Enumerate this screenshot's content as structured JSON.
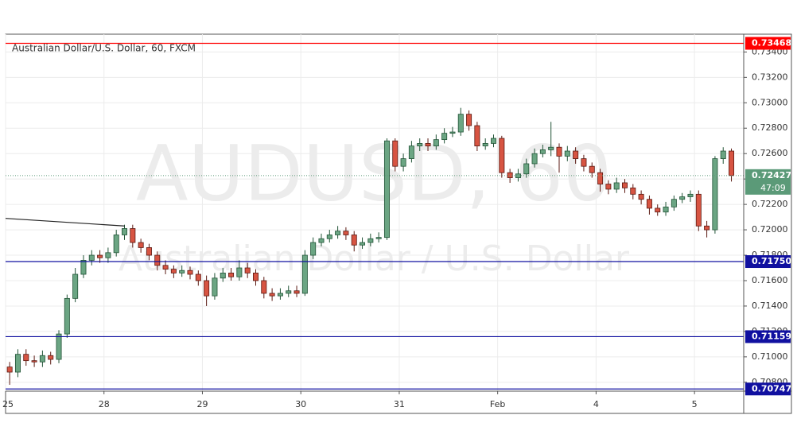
{
  "chart_data": {
    "type": "candlestick",
    "title": "Australian Dollar/U.S. Dollar, 60, FXCM",
    "watermark": "AUDUSD, 60",
    "watermark_subtitle": "Australian Dollar / U.S. Dollar",
    "up_color": "#6ba583",
    "down_color": "#d75442",
    "xlim": [
      0,
      90
    ],
    "xticks": [
      {
        "value": 0,
        "label": "25"
      },
      {
        "value": 12,
        "label": "28"
      },
      {
        "value": 24,
        "label": "29"
      },
      {
        "value": 36,
        "label": "30"
      },
      {
        "value": 48,
        "label": "31"
      },
      {
        "value": 60,
        "label": "Feb"
      },
      {
        "value": 72,
        "label": "4"
      },
      {
        "value": 84,
        "label": "5"
      }
    ],
    "ylim": [
      0.7073,
      0.7354
    ],
    "yticks": [
      {
        "value": 0.708,
        "label": "0.70800"
      },
      {
        "value": 0.71,
        "label": "0.71000"
      },
      {
        "value": 0.712,
        "label": "0.71200"
      },
      {
        "value": 0.714,
        "label": "0.71400"
      },
      {
        "value": 0.716,
        "label": "0.71600"
      },
      {
        "value": 0.718,
        "label": "0.71800"
      },
      {
        "value": 0.72,
        "label": "0.72000"
      },
      {
        "value": 0.722,
        "label": "0.72200"
      },
      {
        "value": 0.724,
        "label": "0.72400"
      },
      {
        "value": 0.726,
        "label": "0.72600"
      },
      {
        "value": 0.728,
        "label": "0.72800"
      },
      {
        "value": 0.73,
        "label": "0.73000"
      },
      {
        "value": 0.732,
        "label": "0.73200"
      },
      {
        "value": 0.734,
        "label": "0.73400"
      }
    ],
    "grid": true,
    "open": [
      0.7092,
      0.7088,
      0.7102,
      0.7097,
      0.7096,
      0.7101,
      0.7098,
      0.7118,
      0.7146,
      0.7165,
      0.7176,
      0.718,
      0.7178,
      0.7182,
      0.7196,
      0.7201,
      0.719,
      0.7186,
      0.718,
      0.7172,
      0.7169,
      0.7166,
      0.7168,
      0.7165,
      0.716,
      0.7148,
      0.7162,
      0.7166,
      0.7163,
      0.717,
      0.7166,
      0.716,
      0.715,
      0.7148,
      0.715,
      0.7152,
      0.715,
      0.718,
      0.719,
      0.7193,
      0.7196,
      0.7199,
      0.7196,
      0.7188,
      0.719,
      0.7193,
      0.7194,
      0.727,
      0.725,
      0.7256,
      0.7266,
      0.7268,
      0.7266,
      0.7271,
      0.7276,
      0.7277,
      0.7291,
      0.7282,
      0.7266,
      0.7268,
      0.7272,
      0.7245,
      0.7241,
      0.7244,
      0.7252,
      0.726,
      0.7263,
      0.7265,
      0.7258,
      0.7262,
      0.7256,
      0.725,
      0.7245,
      0.7236,
      0.7232,
      0.7237,
      0.7233,
      0.7228,
      0.7224,
      0.7217,
      0.7214,
      0.7218,
      0.7224,
      0.7226,
      0.7228,
      0.7203,
      0.72,
      0.7256,
      0.7262
    ],
    "high": [
      0.7096,
      0.7106,
      0.7106,
      0.7101,
      0.7105,
      0.7104,
      0.7121,
      0.7149,
      0.717,
      0.718,
      0.7184,
      0.7184,
      0.7186,
      0.72,
      0.7204,
      0.7204,
      0.7193,
      0.7189,
      0.7183,
      0.7176,
      0.7172,
      0.7172,
      0.7171,
      0.7168,
      0.7164,
      0.7166,
      0.717,
      0.717,
      0.7176,
      0.7174,
      0.7169,
      0.7163,
      0.7154,
      0.7154,
      0.7156,
      0.7156,
      0.7184,
      0.7194,
      0.7197,
      0.72,
      0.7203,
      0.7202,
      0.7199,
      0.7194,
      0.7197,
      0.7198,
      0.7272,
      0.7272,
      0.726,
      0.727,
      0.7272,
      0.7272,
      0.7275,
      0.728,
      0.7281,
      0.7296,
      0.7294,
      0.7285,
      0.7272,
      0.7275,
      0.7274,
      0.7248,
      0.7248,
      0.7256,
      0.7264,
      0.7267,
      0.7285,
      0.7268,
      0.7266,
      0.7265,
      0.7259,
      0.7253,
      0.7248,
      0.7239,
      0.7241,
      0.724,
      0.7236,
      0.7231,
      0.7227,
      0.722,
      0.7222,
      0.7227,
      0.7229,
      0.7231,
      0.7231,
      0.7207,
      0.7258,
      0.7265,
      0.7264
    ],
    "low": [
      0.7078,
      0.7084,
      0.7093,
      0.7092,
      0.7092,
      0.7094,
      0.7095,
      0.7115,
      0.7143,
      0.7162,
      0.7172,
      0.7174,
      0.7174,
      0.7179,
      0.7192,
      0.7186,
      0.7182,
      0.7176,
      0.7168,
      0.7165,
      0.7162,
      0.7163,
      0.7161,
      0.7156,
      0.714,
      0.7145,
      0.7159,
      0.716,
      0.716,
      0.7162,
      0.7156,
      0.7146,
      0.7144,
      0.7145,
      0.7147,
      0.7147,
      0.7148,
      0.7177,
      0.7187,
      0.719,
      0.7193,
      0.7192,
      0.7183,
      0.7185,
      0.7187,
      0.719,
      0.7192,
      0.7246,
      0.7246,
      0.7253,
      0.7262,
      0.7262,
      0.7263,
      0.7268,
      0.7273,
      0.7274,
      0.7278,
      0.7262,
      0.7263,
      0.7265,
      0.7241,
      0.7237,
      0.7238,
      0.7241,
      0.7249,
      0.7257,
      0.7258,
      0.7245,
      0.7254,
      0.7252,
      0.7246,
      0.7241,
      0.723,
      0.7228,
      0.7229,
      0.7229,
      0.7224,
      0.722,
      0.7212,
      0.7211,
      0.7211,
      0.7215,
      0.7221,
      0.7222,
      0.7199,
      0.7194,
      0.7197,
      0.7252,
      0.7238
    ],
    "close": [
      0.7088,
      0.7102,
      0.7097,
      0.7096,
      0.7101,
      0.7098,
      0.7118,
      0.7146,
      0.7165,
      0.7176,
      0.718,
      0.7178,
      0.7182,
      0.7196,
      0.7201,
      0.719,
      0.7186,
      0.718,
      0.7172,
      0.7169,
      0.7166,
      0.7168,
      0.7165,
      0.716,
      0.7148,
      0.7162,
      0.7166,
      0.7163,
      0.717,
      0.7166,
      0.716,
      0.715,
      0.7148,
      0.715,
      0.7152,
      0.715,
      0.718,
      0.719,
      0.7193,
      0.7196,
      0.7199,
      0.7196,
      0.7188,
      0.719,
      0.7193,
      0.7194,
      0.727,
      0.725,
      0.7256,
      0.7266,
      0.7268,
      0.7266,
      0.7271,
      0.7276,
      0.7277,
      0.7291,
      0.7282,
      0.7266,
      0.7268,
      0.7272,
      0.7245,
      0.7241,
      0.7244,
      0.7252,
      0.726,
      0.7263,
      0.7265,
      0.7258,
      0.7262,
      0.7256,
      0.725,
      0.7245,
      0.7236,
      0.7232,
      0.7237,
      0.7233,
      0.7228,
      0.7224,
      0.7217,
      0.7214,
      0.7218,
      0.7224,
      0.7226,
      0.7228,
      0.7203,
      0.72,
      0.7256,
      0.7262,
      0.72427
    ],
    "trendline": {
      "x": [
        0,
        14.5
      ],
      "y": [
        0.7209,
        0.7203
      ],
      "color": "#222222"
    },
    "hlines": [
      {
        "value": 0.73468,
        "label": "0.73468",
        "color": "#ff0000"
      },
      {
        "value": 0.7175,
        "label": "0.71750",
        "color": "#1010a0"
      },
      {
        "value": 0.71159,
        "label": "0.71159",
        "color": "#1010a0"
      },
      {
        "value": 0.70747,
        "label": "0.70747",
        "color": "#1010a0"
      }
    ],
    "last_price": {
      "value": 0.72427,
      "label": "0.72427",
      "countdown": "47:09",
      "color": "#5b9a78"
    }
  }
}
